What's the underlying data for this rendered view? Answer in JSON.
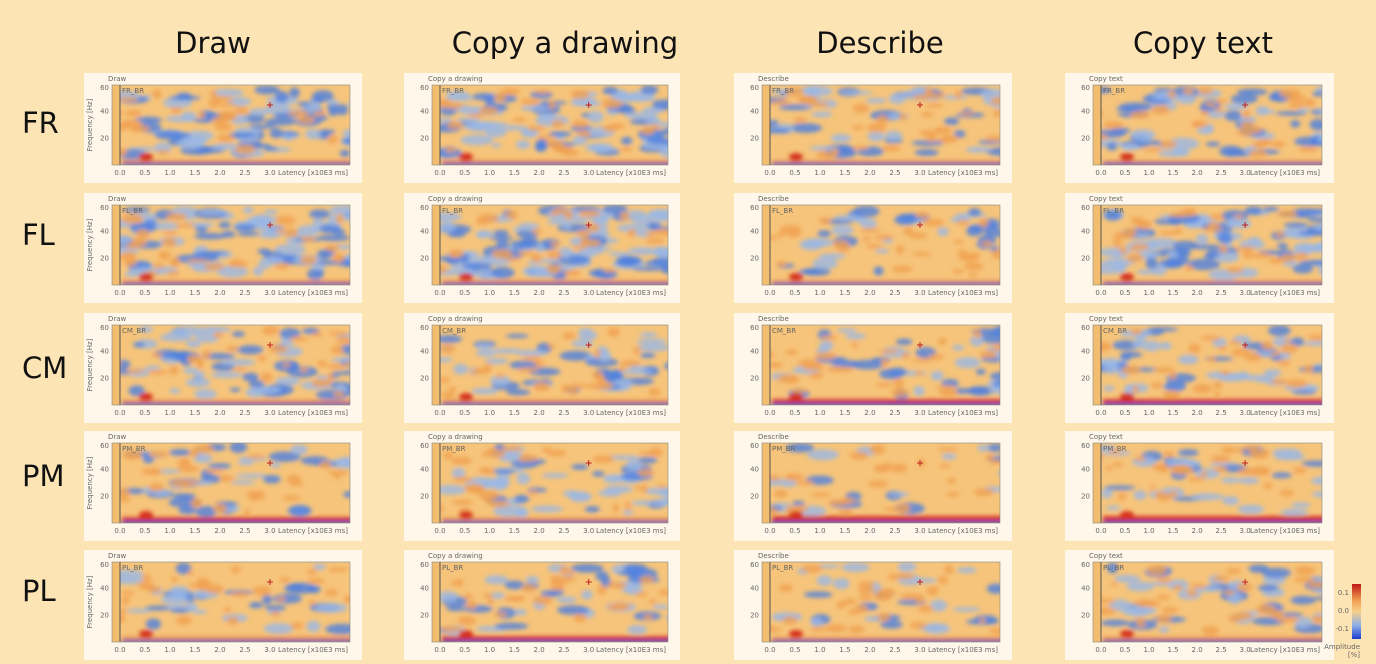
{
  "columns": [
    "Draw",
    "Copy a drawing",
    "Describe",
    "Copy text"
  ],
  "rows": [
    {
      "label": "FR",
      "channel": "FR_BR"
    },
    {
      "label": "FL",
      "channel": "FL_BR"
    },
    {
      "label": "CM",
      "channel": "CM_BR"
    },
    {
      "label": "PM",
      "channel": "PM_BR"
    },
    {
      "label": "PL",
      "channel": "PL_BR"
    }
  ],
  "axes": {
    "ylabel": "Frequency [Hz]",
    "yticks": [
      "20",
      "40",
      "60"
    ],
    "xticks": [
      "0.0",
      "0.5",
      "1.0",
      "1.5",
      "2.0",
      "2.5",
      "3.0"
    ],
    "xlabel": "Latency [x10E3 ms]"
  },
  "colorbar": {
    "ticks": [
      "0.1",
      "0.0",
      "-0.1"
    ],
    "label": [
      "Amplitude",
      "[%]"
    ]
  }
}
